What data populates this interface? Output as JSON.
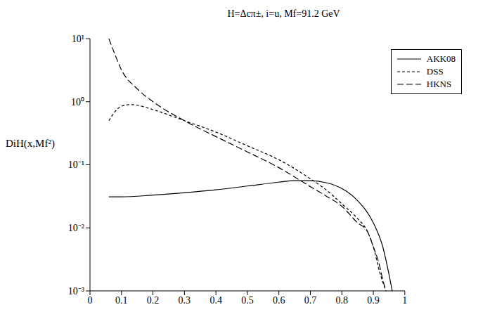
{
  "chart_data": {
    "type": "line",
    "title": "H=Δcπ±, i=u, Mf=91.2 GeV",
    "y_label": "DiH(x,Mf²)",
    "log": "y",
    "grid": false,
    "legend": "top-right",
    "xlim": [
      0,
      1
    ],
    "xticks": [
      0,
      0.1,
      0.2,
      0.3,
      0.4,
      0.5,
      0.6,
      0.7,
      0.8,
      0.9,
      1
    ],
    "ylim": [
      0.001,
      10
    ],
    "yticks": [
      {
        "value": 0.001,
        "label": "10⁻³"
      },
      {
        "value": 0.01,
        "label": "10⁻²"
      },
      {
        "value": 0.1,
        "label": "10⁻¹"
      },
      {
        "value": 1,
        "label": "10⁰"
      },
      {
        "value": 10,
        "label": "10¹"
      }
    ],
    "series": [
      {
        "name": "AKK08",
        "color": "#000000",
        "line_style": "solid",
        "x": [
          0.06,
          0.1,
          0.2,
          0.3,
          0.4,
          0.5,
          0.6,
          0.65,
          0.7,
          0.75,
          0.8,
          0.85,
          0.9,
          0.93,
          0.95,
          0.96
        ],
        "values": [
          0.031,
          0.031,
          0.033,
          0.036,
          0.04,
          0.046,
          0.053,
          0.056,
          0.056,
          0.052,
          0.042,
          0.027,
          0.012,
          0.005,
          0.0018,
          0.001
        ]
      },
      {
        "name": "DSS",
        "color": "#000000",
        "line_style": "dashed",
        "x": [
          0.06,
          0.08,
          0.1,
          0.13,
          0.15,
          0.2,
          0.3,
          0.4,
          0.5,
          0.6,
          0.7,
          0.75,
          0.8,
          0.85,
          0.88,
          0.9,
          0.92,
          0.94
        ],
        "values": [
          0.5,
          0.7,
          0.85,
          0.9,
          0.88,
          0.75,
          0.5,
          0.33,
          0.2,
          0.12,
          0.06,
          0.04,
          0.024,
          0.014,
          0.009,
          0.005,
          0.002,
          0.001
        ]
      },
      {
        "name": "HKNS",
        "color": "#000000",
        "line_style": "long-dashed",
        "x": [
          0.06,
          0.08,
          0.1,
          0.15,
          0.2,
          0.3,
          0.4,
          0.5,
          0.6,
          0.7,
          0.75,
          0.8,
          0.85,
          0.88,
          0.9,
          0.92,
          0.93,
          0.94
        ],
        "values": [
          10,
          5.5,
          3.2,
          1.6,
          1.0,
          0.5,
          0.28,
          0.16,
          0.09,
          0.045,
          0.032,
          0.022,
          0.012,
          0.009,
          0.005,
          0.0025,
          0.0015,
          0.001
        ]
      }
    ]
  }
}
